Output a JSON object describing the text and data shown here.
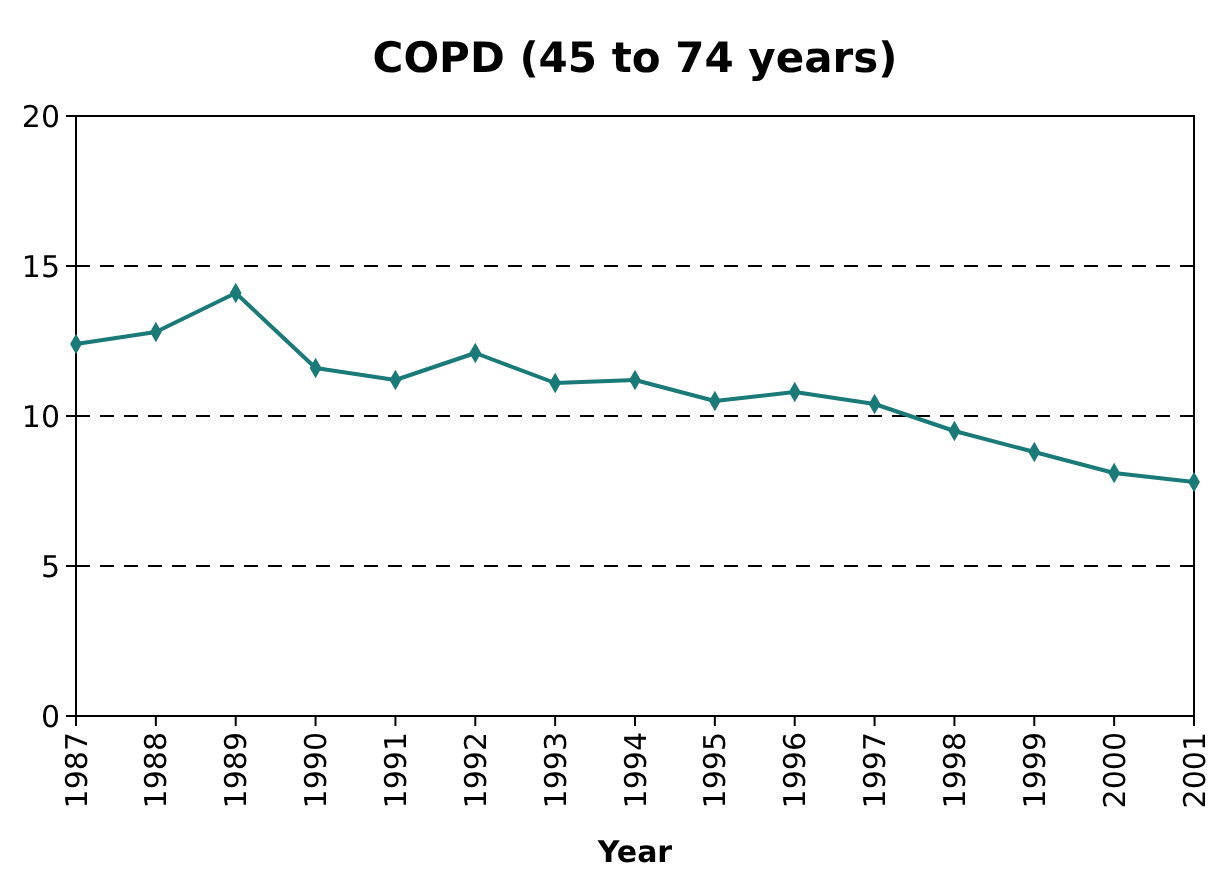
{
  "chart_data": {
    "type": "line",
    "title": "COPD (45 to 74 years)",
    "xlabel": "Year",
    "categories": [
      "1987",
      "1988",
      "1989",
      "1990",
      "1991",
      "1992",
      "1993",
      "1994",
      "1995",
      "1996",
      "1997",
      "1998",
      "1999",
      "2000",
      "2001"
    ],
    "series": [
      {
        "color": "#1a7a78",
        "values": [
          12.4,
          12.8,
          14.1,
          11.6,
          11.2,
          12.1,
          11.1,
          11.2,
          10.5,
          10.8,
          10.4,
          9.5,
          8.8,
          8.1,
          7.8
        ]
      }
    ],
    "ylim": [
      0,
      20
    ],
    "yticks": [
      0,
      5,
      10,
      15,
      20
    ],
    "grid": "y",
    "marker": "diamond",
    "line_style": "solid"
  }
}
